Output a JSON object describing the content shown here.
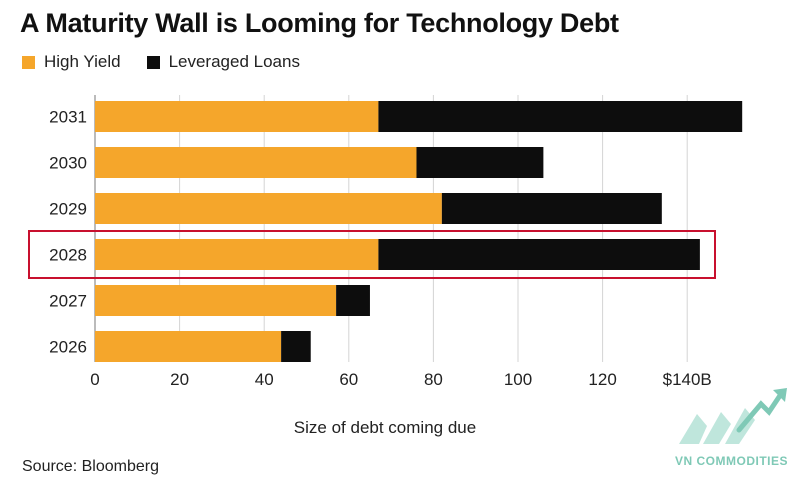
{
  "chart_data": {
    "type": "bar",
    "stacked": true,
    "orientation": "horizontal",
    "title": "A Maturity Wall is Looming for Technology Debt",
    "categories": [
      "2031",
      "2030",
      "2029",
      "2028",
      "2027",
      "2026"
    ],
    "series": [
      {
        "name": "High Yield",
        "color": "#f5a62b",
        "values": [
          67,
          76,
          82,
          67,
          57,
          44
        ]
      },
      {
        "name": "Leveraged Loans",
        "color": "#0d0d0d",
        "values": [
          86,
          30,
          52,
          76,
          8,
          7
        ]
      }
    ],
    "xlim": [
      0,
      155
    ],
    "xticks": [
      0,
      20,
      40,
      60,
      80,
      100,
      120,
      140
    ],
    "xtick_labels": [
      "0",
      "20",
      "40",
      "60",
      "80",
      "100",
      "120",
      "$140B"
    ],
    "xlabel": "Size of debt coming due",
    "ylabel": "",
    "highlight_category": "2028",
    "highlight_color": "#c8102e",
    "gridlines": "vertical"
  },
  "source": "Source: Bloomberg",
  "watermark": {
    "text": "VN COMMODITIES",
    "color": "#7fc9b6"
  }
}
